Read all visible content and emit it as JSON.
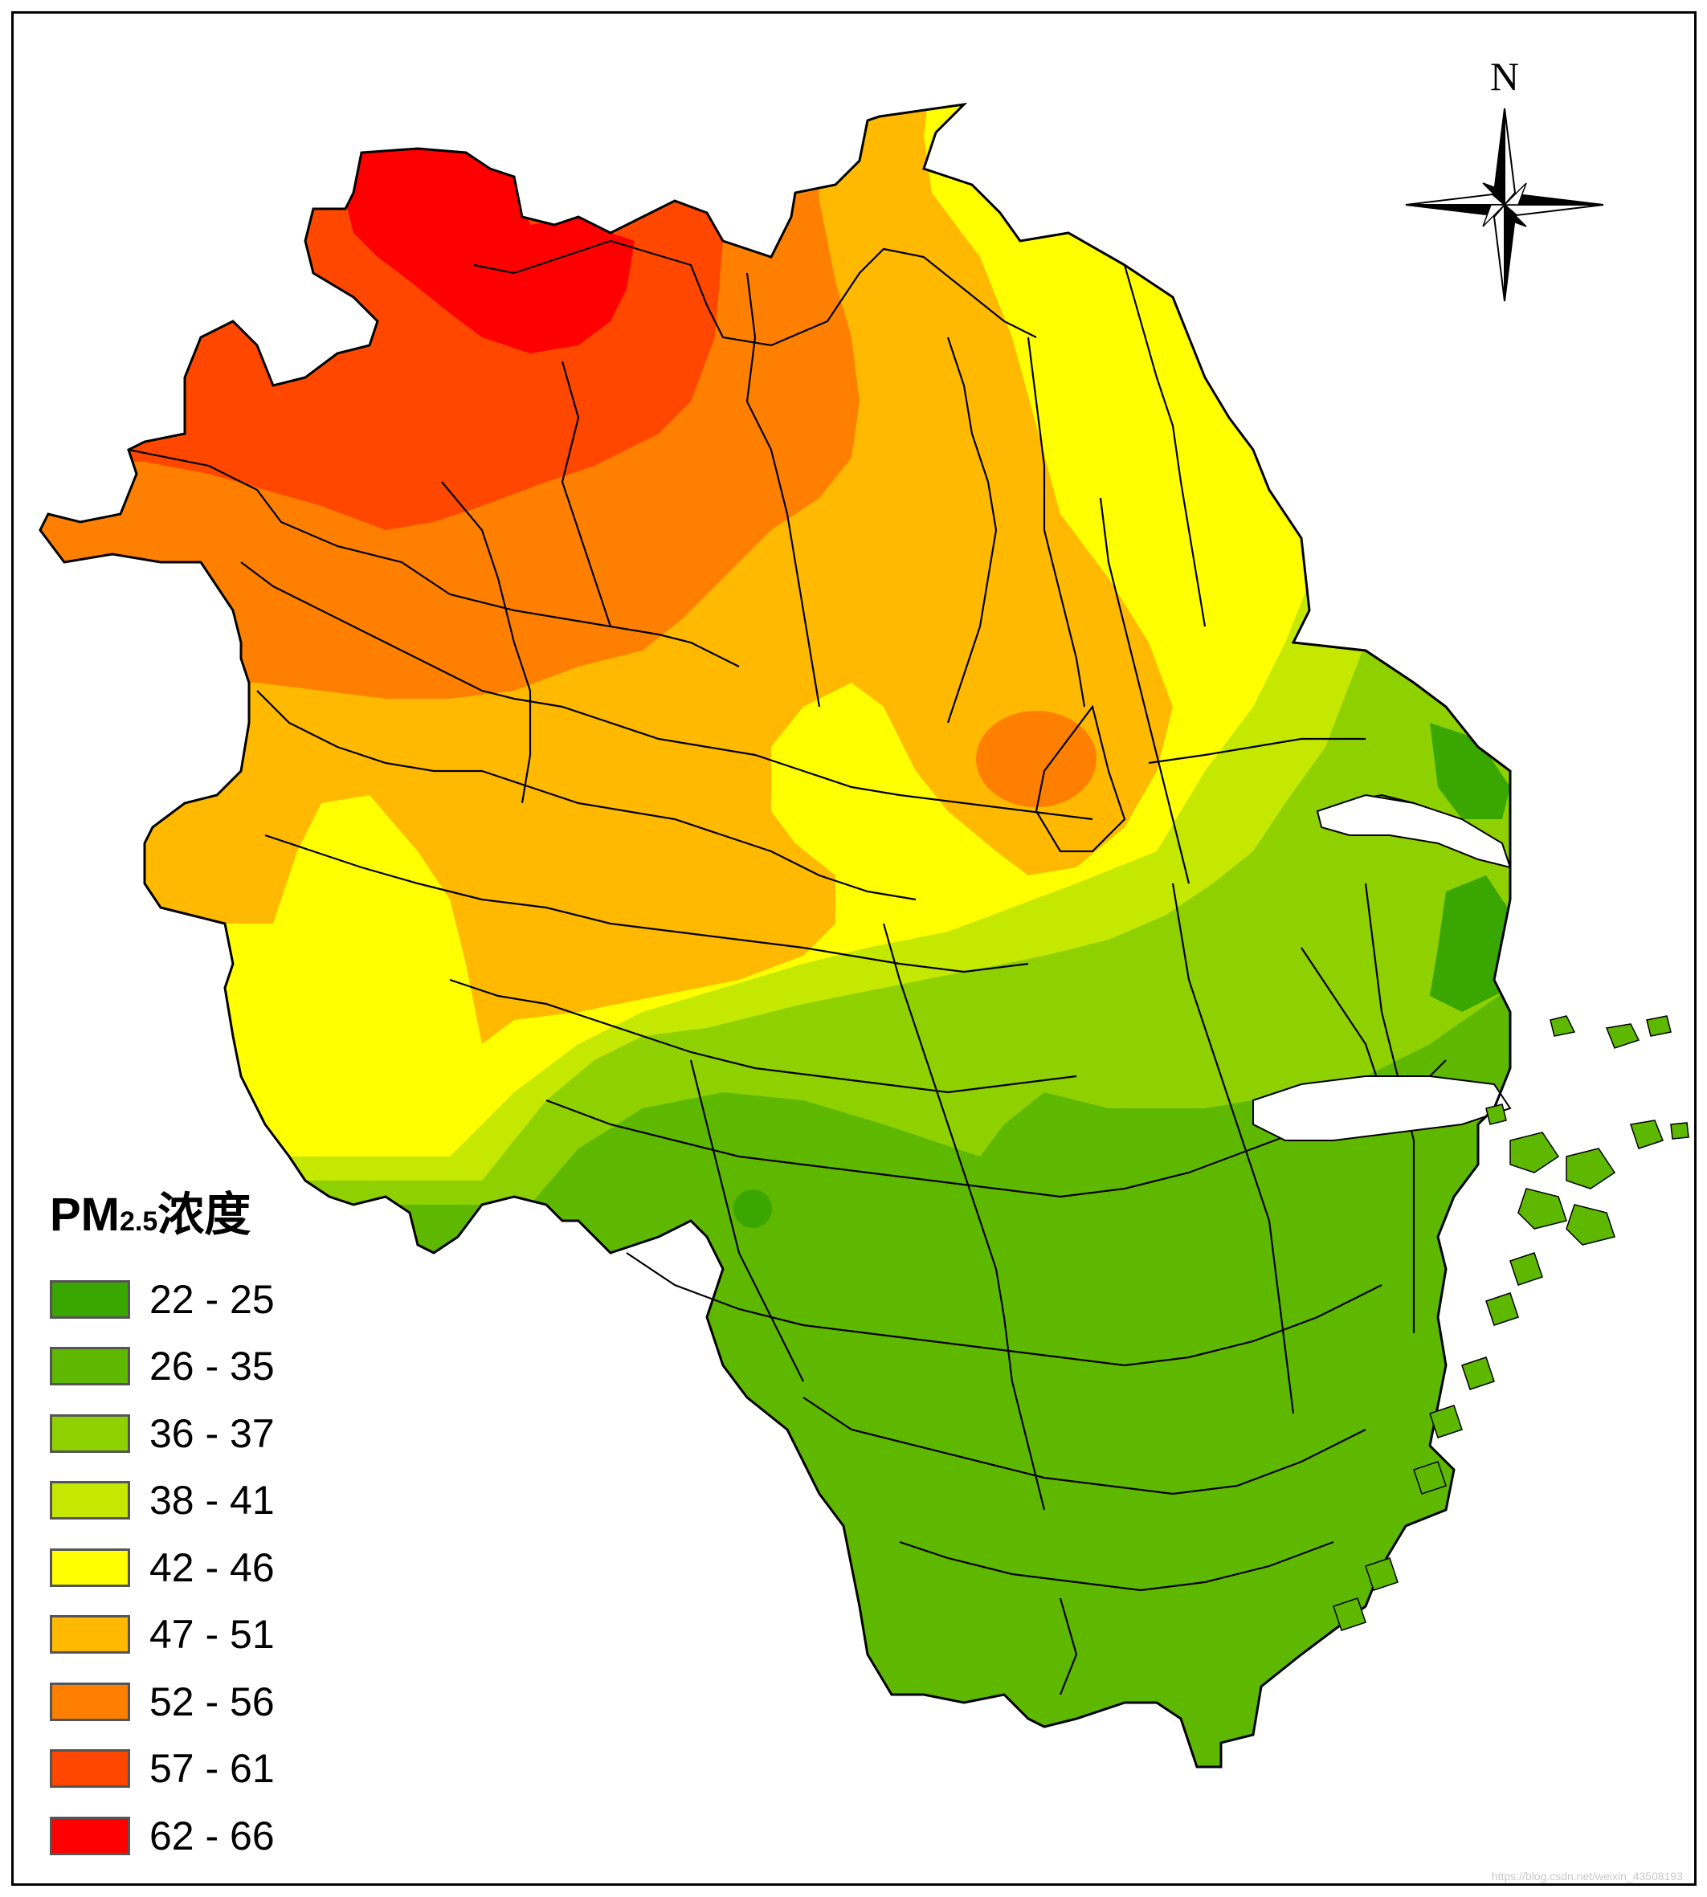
{
  "map": {
    "north_arrow": {
      "label": "N"
    },
    "legend": {
      "title_main": "PM",
      "title_sub": "2.5",
      "title_suffix": "浓度",
      "classes": [
        {
          "label": "22 - 25",
          "color": "#3aa600"
        },
        {
          "label": "26 - 35",
          "color": "#5fb800"
        },
        {
          "label": "36 - 37",
          "color": "#8fd000"
        },
        {
          "label": "38 - 41",
          "color": "#c5e800"
        },
        {
          "label": "42 - 46",
          "color": "#ffff00"
        },
        {
          "label": "47 - 51",
          "color": "#ffb900"
        },
        {
          "label": "52 - 56",
          "color": "#ff8000"
        },
        {
          "label": "57 - 61",
          "color": "#ff4700"
        },
        {
          "label": "62 - 66",
          "color": "#ff0000"
        }
      ]
    },
    "watermark": "https://blog.csdn.net/weixin_43508193"
  }
}
